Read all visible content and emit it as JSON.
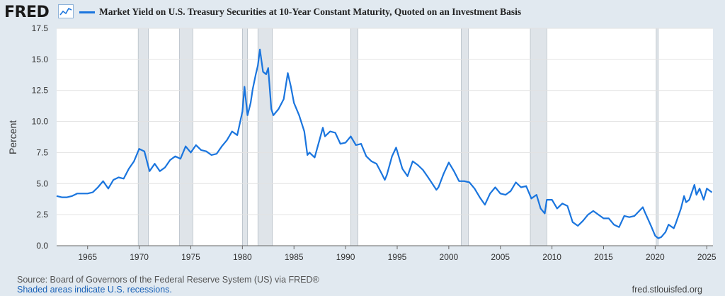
{
  "header": {
    "logo_text": "FRED",
    "logo_mark_icon": "line-chart-icon",
    "series_color": "#1a75de"
  },
  "footer": {
    "source": "Source: Board of Governors of the Federal Reserve System (US) via FRED®",
    "recessions_note": "Shaded areas indicate U.S. recessions.",
    "site": "fred.stlouisfed.org"
  },
  "chart_data": {
    "type": "line",
    "title": "Market Yield on U.S. Treasury Securities at 10-Year Constant Maturity, Quoted on an Investment Basis",
    "xlabel": "",
    "ylabel": "Percent",
    "xlim": [
      1962.0,
      2025.6
    ],
    "ylim": [
      0,
      17.5
    ],
    "x_ticks": [
      1965,
      1970,
      1975,
      1980,
      1985,
      1990,
      1995,
      2000,
      2005,
      2010,
      2015,
      2020,
      2025
    ],
    "y_ticks": [
      0.0,
      2.5,
      5.0,
      7.5,
      10.0,
      12.5,
      15.0,
      17.5
    ],
    "y_tick_labels": [
      "0.0",
      "2.5",
      "5.0",
      "7.5",
      "10.0",
      "12.5",
      "15.0",
      "17.5"
    ],
    "grid": "horizontal",
    "recessions": [
      [
        1969.9,
        1970.9
      ],
      [
        1973.9,
        1975.2
      ],
      [
        1980.0,
        1980.5
      ],
      [
        1981.5,
        1982.9
      ],
      [
        1990.5,
        1991.2
      ],
      [
        2001.2,
        2001.9
      ],
      [
        2007.9,
        2009.5
      ],
      [
        2020.1,
        2020.3
      ]
    ],
    "series": [
      {
        "name": "Market Yield on U.S. Treasury Securities at 10-Year Constant Maturity, Quoted on an Investment Basis",
        "color": "#1a75de",
        "x": [
          1962.0,
          1962.5,
          1963.0,
          1963.5,
          1964.0,
          1964.5,
          1965.0,
          1965.5,
          1966.0,
          1966.5,
          1967.0,
          1967.5,
          1968.0,
          1968.5,
          1969.0,
          1969.5,
          1970.0,
          1970.5,
          1971.0,
          1971.5,
          1972.0,
          1972.5,
          1973.0,
          1973.5,
          1974.0,
          1974.5,
          1975.0,
          1975.5,
          1976.0,
          1976.5,
          1977.0,
          1977.5,
          1978.0,
          1978.5,
          1979.0,
          1979.5,
          1980.0,
          1980.2,
          1980.5,
          1980.8,
          1981.0,
          1981.3,
          1981.5,
          1981.7,
          1982.0,
          1982.3,
          1982.5,
          1982.8,
          1983.0,
          1983.5,
          1984.0,
          1984.4,
          1984.7,
          1985.0,
          1985.5,
          1986.0,
          1986.3,
          1986.5,
          1987.0,
          1987.5,
          1987.8,
          1988.0,
          1988.5,
          1989.0,
          1989.5,
          1990.0,
          1990.5,
          1991.0,
          1991.5,
          1992.0,
          1992.5,
          1993.0,
          1993.5,
          1993.8,
          1994.0,
          1994.5,
          1994.9,
          1995.5,
          1996.0,
          1996.5,
          1997.0,
          1997.5,
          1998.0,
          1998.8,
          1999.0,
          1999.5,
          2000.0,
          2000.5,
          2001.0,
          2001.5,
          2002.0,
          2002.5,
          2003.0,
          2003.5,
          2004.0,
          2004.5,
          2005.0,
          2005.5,
          2006.0,
          2006.5,
          2007.0,
          2007.5,
          2008.0,
          2008.5,
          2008.9,
          2009.3,
          2009.5,
          2010.0,
          2010.5,
          2011.0,
          2011.5,
          2012.0,
          2012.5,
          2013.0,
          2013.5,
          2014.0,
          2014.5,
          2015.0,
          2015.5,
          2016.0,
          2016.5,
          2017.0,
          2017.5,
          2018.0,
          2018.8,
          2019.0,
          2019.6,
          2020.0,
          2020.3,
          2020.6,
          2021.0,
          2021.3,
          2021.8,
          2022.0,
          2022.5,
          2022.8,
          2023.0,
          2023.3,
          2023.8,
          2024.0,
          2024.3,
          2024.7,
          2025.0,
          2025.5
        ],
        "y": [
          4.0,
          3.9,
          3.9,
          4.0,
          4.2,
          4.2,
          4.2,
          4.3,
          4.7,
          5.2,
          4.6,
          5.3,
          5.5,
          5.4,
          6.2,
          6.8,
          7.8,
          7.6,
          6.0,
          6.6,
          6.0,
          6.3,
          6.9,
          7.2,
          7.0,
          8.0,
          7.5,
          8.1,
          7.7,
          7.6,
          7.3,
          7.4,
          8.0,
          8.5,
          9.2,
          8.9,
          10.8,
          12.8,
          10.5,
          11.5,
          12.6,
          13.8,
          14.5,
          15.8,
          14.0,
          13.8,
          14.3,
          11.0,
          10.5,
          11.0,
          11.8,
          13.9,
          12.8,
          11.5,
          10.5,
          9.2,
          7.3,
          7.5,
          7.1,
          8.6,
          9.5,
          8.8,
          9.2,
          9.1,
          8.2,
          8.3,
          8.8,
          8.1,
          8.2,
          7.2,
          6.8,
          6.6,
          5.8,
          5.3,
          5.7,
          7.2,
          7.9,
          6.2,
          5.6,
          6.8,
          6.5,
          6.1,
          5.5,
          4.5,
          4.7,
          5.8,
          6.7,
          6.0,
          5.2,
          5.2,
          5.1,
          4.6,
          3.9,
          3.3,
          4.2,
          4.7,
          4.2,
          4.1,
          4.4,
          5.1,
          4.7,
          4.8,
          3.8,
          4.1,
          3.0,
          2.6,
          3.7,
          3.7,
          3.0,
          3.4,
          3.2,
          1.9,
          1.6,
          2.0,
          2.5,
          2.8,
          2.5,
          2.2,
          2.2,
          1.7,
          1.5,
          2.4,
          2.3,
          2.4,
          3.1,
          2.7,
          1.6,
          0.8,
          0.6,
          0.7,
          1.1,
          1.7,
          1.4,
          1.8,
          3.0,
          4.0,
          3.5,
          3.7,
          4.9,
          4.1,
          4.6,
          3.7,
          4.6,
          4.3
        ]
      }
    ]
  }
}
